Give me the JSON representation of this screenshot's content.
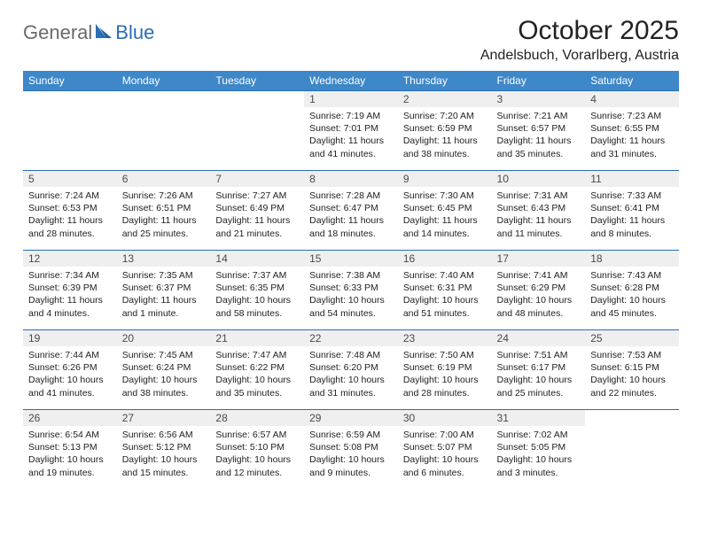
{
  "logo": {
    "text1": "General",
    "text2": "Blue"
  },
  "title": "October 2025",
  "location": "Andelsbuch, Vorarlberg, Austria",
  "colors": {
    "header_bg": "#3e87c8",
    "header_text": "#ffffff",
    "daynum_bg": "#efefef",
    "border_top": "#2a6db8",
    "text": "#222222",
    "logo_gray": "#6a6a6a",
    "logo_blue": "#2a6db8"
  },
  "day_headers": [
    "Sunday",
    "Monday",
    "Tuesday",
    "Wednesday",
    "Thursday",
    "Friday",
    "Saturday"
  ],
  "weeks": [
    [
      null,
      null,
      null,
      {
        "n": "1",
        "sr": "7:19 AM",
        "ss": "7:01 PM",
        "dl": "11 hours and 41 minutes."
      },
      {
        "n": "2",
        "sr": "7:20 AM",
        "ss": "6:59 PM",
        "dl": "11 hours and 38 minutes."
      },
      {
        "n": "3",
        "sr": "7:21 AM",
        "ss": "6:57 PM",
        "dl": "11 hours and 35 minutes."
      },
      {
        "n": "4",
        "sr": "7:23 AM",
        "ss": "6:55 PM",
        "dl": "11 hours and 31 minutes."
      }
    ],
    [
      {
        "n": "5",
        "sr": "7:24 AM",
        "ss": "6:53 PM",
        "dl": "11 hours and 28 minutes."
      },
      {
        "n": "6",
        "sr": "7:26 AM",
        "ss": "6:51 PM",
        "dl": "11 hours and 25 minutes."
      },
      {
        "n": "7",
        "sr": "7:27 AM",
        "ss": "6:49 PM",
        "dl": "11 hours and 21 minutes."
      },
      {
        "n": "8",
        "sr": "7:28 AM",
        "ss": "6:47 PM",
        "dl": "11 hours and 18 minutes."
      },
      {
        "n": "9",
        "sr": "7:30 AM",
        "ss": "6:45 PM",
        "dl": "11 hours and 14 minutes."
      },
      {
        "n": "10",
        "sr": "7:31 AM",
        "ss": "6:43 PM",
        "dl": "11 hours and 11 minutes."
      },
      {
        "n": "11",
        "sr": "7:33 AM",
        "ss": "6:41 PM",
        "dl": "11 hours and 8 minutes."
      }
    ],
    [
      {
        "n": "12",
        "sr": "7:34 AM",
        "ss": "6:39 PM",
        "dl": "11 hours and 4 minutes."
      },
      {
        "n": "13",
        "sr": "7:35 AM",
        "ss": "6:37 PM",
        "dl": "11 hours and 1 minute."
      },
      {
        "n": "14",
        "sr": "7:37 AM",
        "ss": "6:35 PM",
        "dl": "10 hours and 58 minutes."
      },
      {
        "n": "15",
        "sr": "7:38 AM",
        "ss": "6:33 PM",
        "dl": "10 hours and 54 minutes."
      },
      {
        "n": "16",
        "sr": "7:40 AM",
        "ss": "6:31 PM",
        "dl": "10 hours and 51 minutes."
      },
      {
        "n": "17",
        "sr": "7:41 AM",
        "ss": "6:29 PM",
        "dl": "10 hours and 48 minutes."
      },
      {
        "n": "18",
        "sr": "7:43 AM",
        "ss": "6:28 PM",
        "dl": "10 hours and 45 minutes."
      }
    ],
    [
      {
        "n": "19",
        "sr": "7:44 AM",
        "ss": "6:26 PM",
        "dl": "10 hours and 41 minutes."
      },
      {
        "n": "20",
        "sr": "7:45 AM",
        "ss": "6:24 PM",
        "dl": "10 hours and 38 minutes."
      },
      {
        "n": "21",
        "sr": "7:47 AM",
        "ss": "6:22 PM",
        "dl": "10 hours and 35 minutes."
      },
      {
        "n": "22",
        "sr": "7:48 AM",
        "ss": "6:20 PM",
        "dl": "10 hours and 31 minutes."
      },
      {
        "n": "23",
        "sr": "7:50 AM",
        "ss": "6:19 PM",
        "dl": "10 hours and 28 minutes."
      },
      {
        "n": "24",
        "sr": "7:51 AM",
        "ss": "6:17 PM",
        "dl": "10 hours and 25 minutes."
      },
      {
        "n": "25",
        "sr": "7:53 AM",
        "ss": "6:15 PM",
        "dl": "10 hours and 22 minutes."
      }
    ],
    [
      {
        "n": "26",
        "sr": "6:54 AM",
        "ss": "5:13 PM",
        "dl": "10 hours and 19 minutes."
      },
      {
        "n": "27",
        "sr": "6:56 AM",
        "ss": "5:12 PM",
        "dl": "10 hours and 15 minutes."
      },
      {
        "n": "28",
        "sr": "6:57 AM",
        "ss": "5:10 PM",
        "dl": "10 hours and 12 minutes."
      },
      {
        "n": "29",
        "sr": "6:59 AM",
        "ss": "5:08 PM",
        "dl": "10 hours and 9 minutes."
      },
      {
        "n": "30",
        "sr": "7:00 AM",
        "ss": "5:07 PM",
        "dl": "10 hours and 6 minutes."
      },
      {
        "n": "31",
        "sr": "7:02 AM",
        "ss": "5:05 PM",
        "dl": "10 hours and 3 minutes."
      },
      null
    ]
  ],
  "labels": {
    "sunrise": "Sunrise: ",
    "sunset": "Sunset: ",
    "daylight": "Daylight: "
  }
}
